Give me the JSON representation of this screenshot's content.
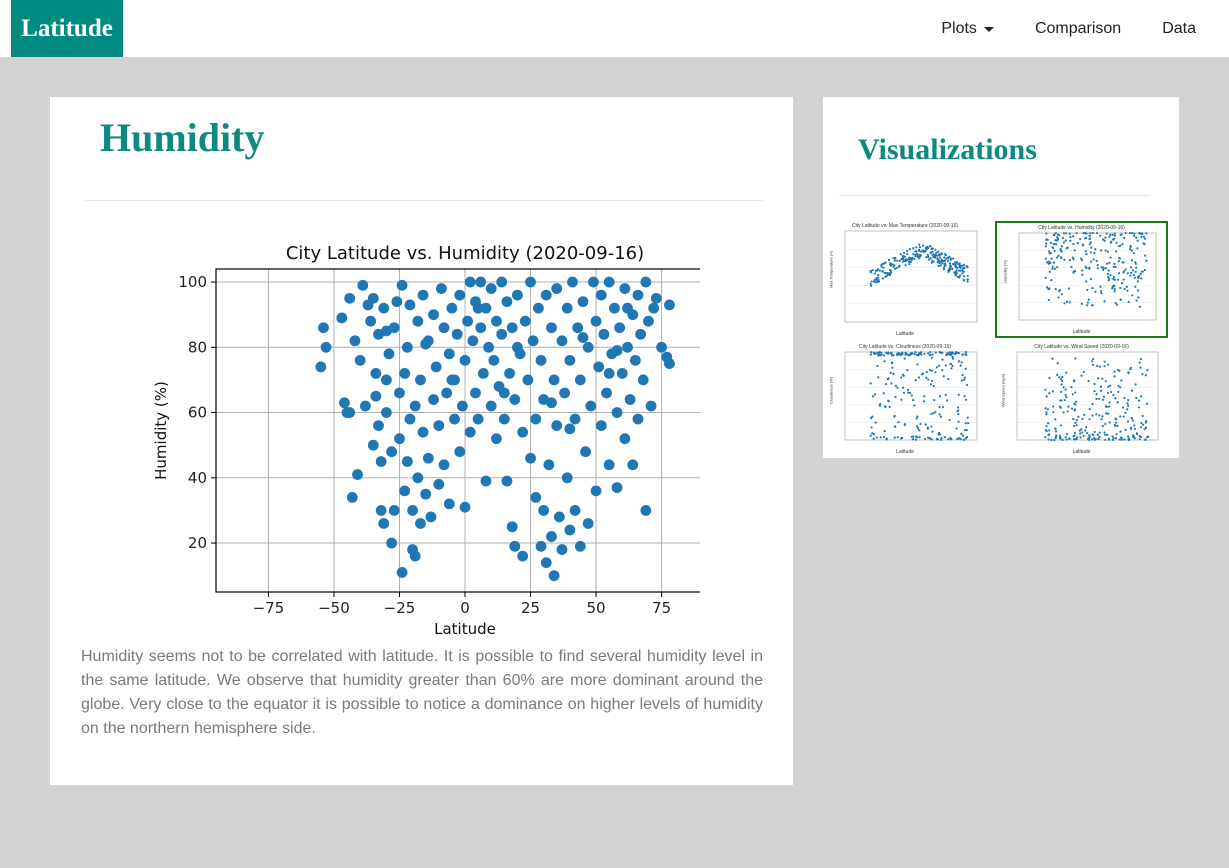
{
  "nav": {
    "brand": "Latitude",
    "items": [
      {
        "label": "Plots",
        "dropdown": true
      },
      {
        "label": "Comparison",
        "dropdown": false
      },
      {
        "label": "Data",
        "dropdown": false
      }
    ]
  },
  "colors": {
    "brand": "#008a80",
    "heading": "#0d8a80",
    "background": "#d3d3d3",
    "marker": "#1f77b4",
    "selected_border": "#1a7a1a"
  },
  "main": {
    "title": "Humidity",
    "description": "Humidity seems not to be correlated with latitude. It is possible to find several humidity level in the same latitude. We observe that humidity greater than 60% are more dominant around the globe. Very close to the equator it is possible to notice a dominance on higher levels of humidity on the northern hemisphere side."
  },
  "chart_data": {
    "type": "scatter",
    "title": "City Latitude vs. Humidity (2020-09-16)",
    "xlabel": "Latitude",
    "ylabel": "Humidity (%)",
    "xlim": [
      -95,
      95
    ],
    "ylim": [
      5,
      104
    ],
    "xticks": [
      -75,
      -50,
      -25,
      0,
      25,
      50,
      75
    ],
    "yticks": [
      20,
      40,
      60,
      80,
      100
    ],
    "grid": true,
    "marker_color": "#1f77b4",
    "series": [
      {
        "points": [
          [
            -55,
            74
          ],
          [
            -54,
            86
          ],
          [
            -53,
            80
          ],
          [
            -47,
            89
          ],
          [
            -46,
            63
          ],
          [
            -45,
            60
          ],
          [
            -44,
            95
          ],
          [
            -43,
            34
          ],
          [
            -42,
            82
          ],
          [
            -41,
            41
          ],
          [
            -40,
            76
          ],
          [
            -38,
            62
          ],
          [
            -37,
            93
          ],
          [
            -36,
            88
          ],
          [
            -35,
            50
          ],
          [
            -35,
            95
          ],
          [
            -34,
            72
          ],
          [
            -34,
            65
          ],
          [
            -33,
            56
          ],
          [
            -33,
            84
          ],
          [
            -32,
            30
          ],
          [
            -32,
            45
          ],
          [
            -31,
            92
          ],
          [
            -31,
            26
          ],
          [
            -30,
            70
          ],
          [
            -30,
            60
          ],
          [
            -29,
            78
          ],
          [
            -28,
            20
          ],
          [
            -28,
            48
          ],
          [
            -27,
            86
          ],
          [
            -27,
            30
          ],
          [
            -26,
            94
          ],
          [
            -25,
            66
          ],
          [
            -25,
            52
          ],
          [
            -24,
            11
          ],
          [
            -24,
            99
          ],
          [
            -23,
            36
          ],
          [
            -23,
            72
          ],
          [
            -22,
            80
          ],
          [
            -22,
            45
          ],
          [
            -21,
            58
          ],
          [
            -21,
            93
          ],
          [
            -20,
            30
          ],
          [
            -20,
            18
          ],
          [
            -19,
            62
          ],
          [
            -19,
            16
          ],
          [
            -18,
            88
          ],
          [
            -18,
            40
          ],
          [
            -17,
            26
          ],
          [
            -17,
            70
          ],
          [
            -16,
            54
          ],
          [
            -16,
            96
          ],
          [
            -15,
            35
          ],
          [
            -14,
            82
          ],
          [
            -14,
            46
          ],
          [
            -13,
            28
          ],
          [
            -12,
            64
          ],
          [
            -12,
            90
          ],
          [
            -11,
            74
          ],
          [
            -10,
            38
          ],
          [
            -10,
            56
          ],
          [
            -9,
            98
          ],
          [
            -8,
            86
          ],
          [
            -8,
            44
          ],
          [
            -7,
            66
          ],
          [
            -6,
            78
          ],
          [
            -6,
            32
          ],
          [
            -5,
            92
          ],
          [
            -4,
            58
          ],
          [
            -4,
            70
          ],
          [
            -3,
            84
          ],
          [
            -2,
            48
          ],
          [
            -2,
            96
          ],
          [
            -1,
            62
          ],
          [
            0,
            31
          ],
          [
            0,
            76
          ],
          [
            1,
            88
          ],
          [
            2,
            54
          ],
          [
            2,
            100
          ],
          [
            3,
            82
          ],
          [
            4,
            66
          ],
          [
            4,
            94
          ],
          [
            5,
            58
          ],
          [
            6,
            100
          ],
          [
            6,
            86
          ],
          [
            7,
            72
          ],
          [
            8,
            39
          ],
          [
            8,
            92
          ],
          [
            9,
            80
          ],
          [
            10,
            62
          ],
          [
            10,
            98
          ],
          [
            11,
            76
          ],
          [
            12,
            52
          ],
          [
            12,
            88
          ],
          [
            13,
            68
          ],
          [
            14,
            100
          ],
          [
            14,
            84
          ],
          [
            15,
            58
          ],
          [
            16,
            94
          ],
          [
            16,
            39
          ],
          [
            17,
            72
          ],
          [
            18,
            25
          ],
          [
            18,
            86
          ],
          [
            19,
            19
          ],
          [
            19,
            64
          ],
          [
            20,
            96
          ],
          [
            21,
            78
          ],
          [
            22,
            16
          ],
          [
            22,
            54
          ],
          [
            23,
            88
          ],
          [
            24,
            70
          ],
          [
            25,
            46
          ],
          [
            25,
            100
          ],
          [
            26,
            82
          ],
          [
            27,
            34
          ],
          [
            27,
            58
          ],
          [
            28,
            92
          ],
          [
            29,
            19
          ],
          [
            29,
            76
          ],
          [
            30,
            30
          ],
          [
            30,
            64
          ],
          [
            31,
            14
          ],
          [
            31,
            96
          ],
          [
            32,
            44
          ],
          [
            33,
            86
          ],
          [
            33,
            22
          ],
          [
            34,
            10
          ],
          [
            34,
            70
          ],
          [
            35,
            56
          ],
          [
            35,
            98
          ],
          [
            36,
            28
          ],
          [
            37,
            82
          ],
          [
            37,
            18
          ],
          [
            38,
            66
          ],
          [
            39,
            92
          ],
          [
            39,
            40
          ],
          [
            40,
            24
          ],
          [
            40,
            76
          ],
          [
            41,
            100
          ],
          [
            42,
            30
          ],
          [
            42,
            58
          ],
          [
            43,
            86
          ],
          [
            44,
            19
          ],
          [
            44,
            70
          ],
          [
            45,
            94
          ],
          [
            46,
            48
          ],
          [
            47,
            80
          ],
          [
            47,
            26
          ],
          [
            48,
            62
          ],
          [
            49,
            100
          ],
          [
            50,
            88
          ],
          [
            50,
            36
          ],
          [
            51,
            74
          ],
          [
            52,
            56
          ],
          [
            52,
            96
          ],
          [
            53,
            84
          ],
          [
            54,
            66
          ],
          [
            55,
            100
          ],
          [
            55,
            44
          ],
          [
            56,
            78
          ],
          [
            57,
            92
          ],
          [
            58,
            60
          ],
          [
            58,
            37
          ],
          [
            59,
            86
          ],
          [
            60,
            72
          ],
          [
            61,
            52
          ],
          [
            61,
            98
          ],
          [
            62,
            80
          ],
          [
            63,
            64
          ],
          [
            64,
            90
          ],
          [
            64,
            44
          ],
          [
            65,
            76
          ],
          [
            66,
            58
          ],
          [
            66,
            96
          ],
          [
            67,
            84
          ],
          [
            68,
            70
          ],
          [
            69,
            30
          ],
          [
            69,
            100
          ],
          [
            70,
            88
          ],
          [
            71,
            62
          ],
          [
            72,
            92
          ],
          [
            73,
            95
          ],
          [
            75,
            80
          ],
          [
            77,
            77
          ],
          [
            78,
            75
          ],
          [
            78,
            93
          ],
          [
            -44,
            60
          ],
          [
            -39,
            99
          ],
          [
            -15,
            81
          ],
          [
            15,
            66
          ],
          [
            33,
            63
          ],
          [
            58,
            79
          ],
          [
            -5,
            70
          ],
          [
            5,
            92
          ],
          [
            45,
            83
          ],
          [
            62,
            92
          ],
          [
            -30,
            85
          ],
          [
            20,
            80
          ],
          [
            40,
            55
          ],
          [
            55,
            72
          ]
        ]
      }
    ]
  },
  "sidebar": {
    "title": "Visualizations",
    "thumbnails": [
      {
        "title": "City Latitude vs. Max Temperature (2020-09-16)",
        "xlabel": "Latitude",
        "ylabel": "Max Temperature (F)",
        "selected": false
      },
      {
        "title": "City Latitude vs. Humidity (2020-09-16)",
        "xlabel": "Latitude",
        "ylabel": "Humidity (%)",
        "selected": true
      },
      {
        "title": "City Latitude vs. Cloudiness (2020-09-16)",
        "xlabel": "Latitude",
        "ylabel": "Cloudiness (%)",
        "selected": false
      },
      {
        "title": "City Latitude vs. Wind Speed (2020-09-16)",
        "xlabel": "Latitude",
        "ylabel": "Wind Speed (mph)",
        "selected": false
      }
    ]
  }
}
